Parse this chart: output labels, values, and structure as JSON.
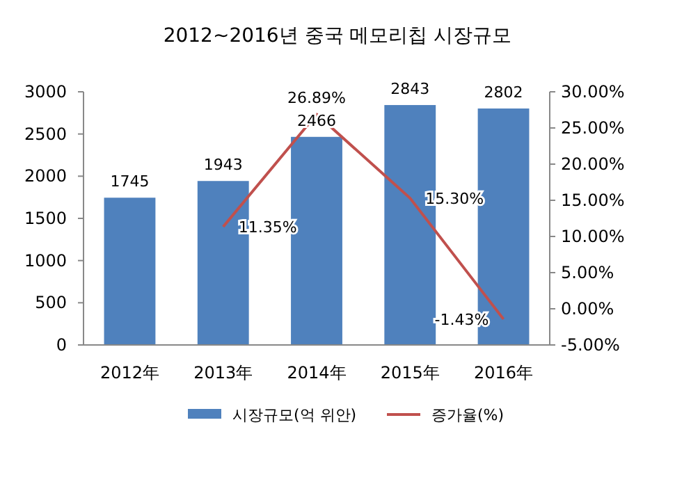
{
  "chart_data": {
    "type": "bar",
    "title": "2012~2016년 중국 메모리칩 시장규모",
    "categories": [
      "2012年",
      "2013年",
      "2014年",
      "2015年",
      "2016年"
    ],
    "series": [
      {
        "name": "시장규모(억 위안)",
        "color": "#4f81bd",
        "values": [
          1745,
          1943,
          2466,
          2843,
          2802
        ],
        "value_labels": [
          "1745",
          "1943",
          "2466",
          "2843",
          "2802"
        ]
      },
      {
        "name": "증가율(%)",
        "type": "line",
        "axis": "y2",
        "color": "#c0504d",
        "values": [
          null,
          11.35,
          26.89,
          15.3,
          -1.43
        ],
        "value_labels": [
          null,
          "11.35%",
          "26.89%",
          "15.30%",
          "-1.43%"
        ]
      }
    ],
    "ylim": [
      0,
      3000
    ],
    "yticks": [
      0,
      500,
      1000,
      1500,
      2000,
      2500,
      3000
    ],
    "y2lim": [
      -5,
      30
    ],
    "y2ticks": [
      {
        "value": -5,
        "label": "-5.00%"
      },
      {
        "value": 0,
        "label": "0.00%"
      },
      {
        "value": 5,
        "label": "5.00%"
      },
      {
        "value": 10,
        "label": "10.00%"
      },
      {
        "value": 15,
        "label": "15.00%"
      },
      {
        "value": 20,
        "label": "20.00%"
      },
      {
        "value": 25,
        "label": "25.00%"
      },
      {
        "value": 30,
        "label": "30.00%"
      }
    ],
    "legend": "bottom",
    "grid": false,
    "marker": "none"
  }
}
